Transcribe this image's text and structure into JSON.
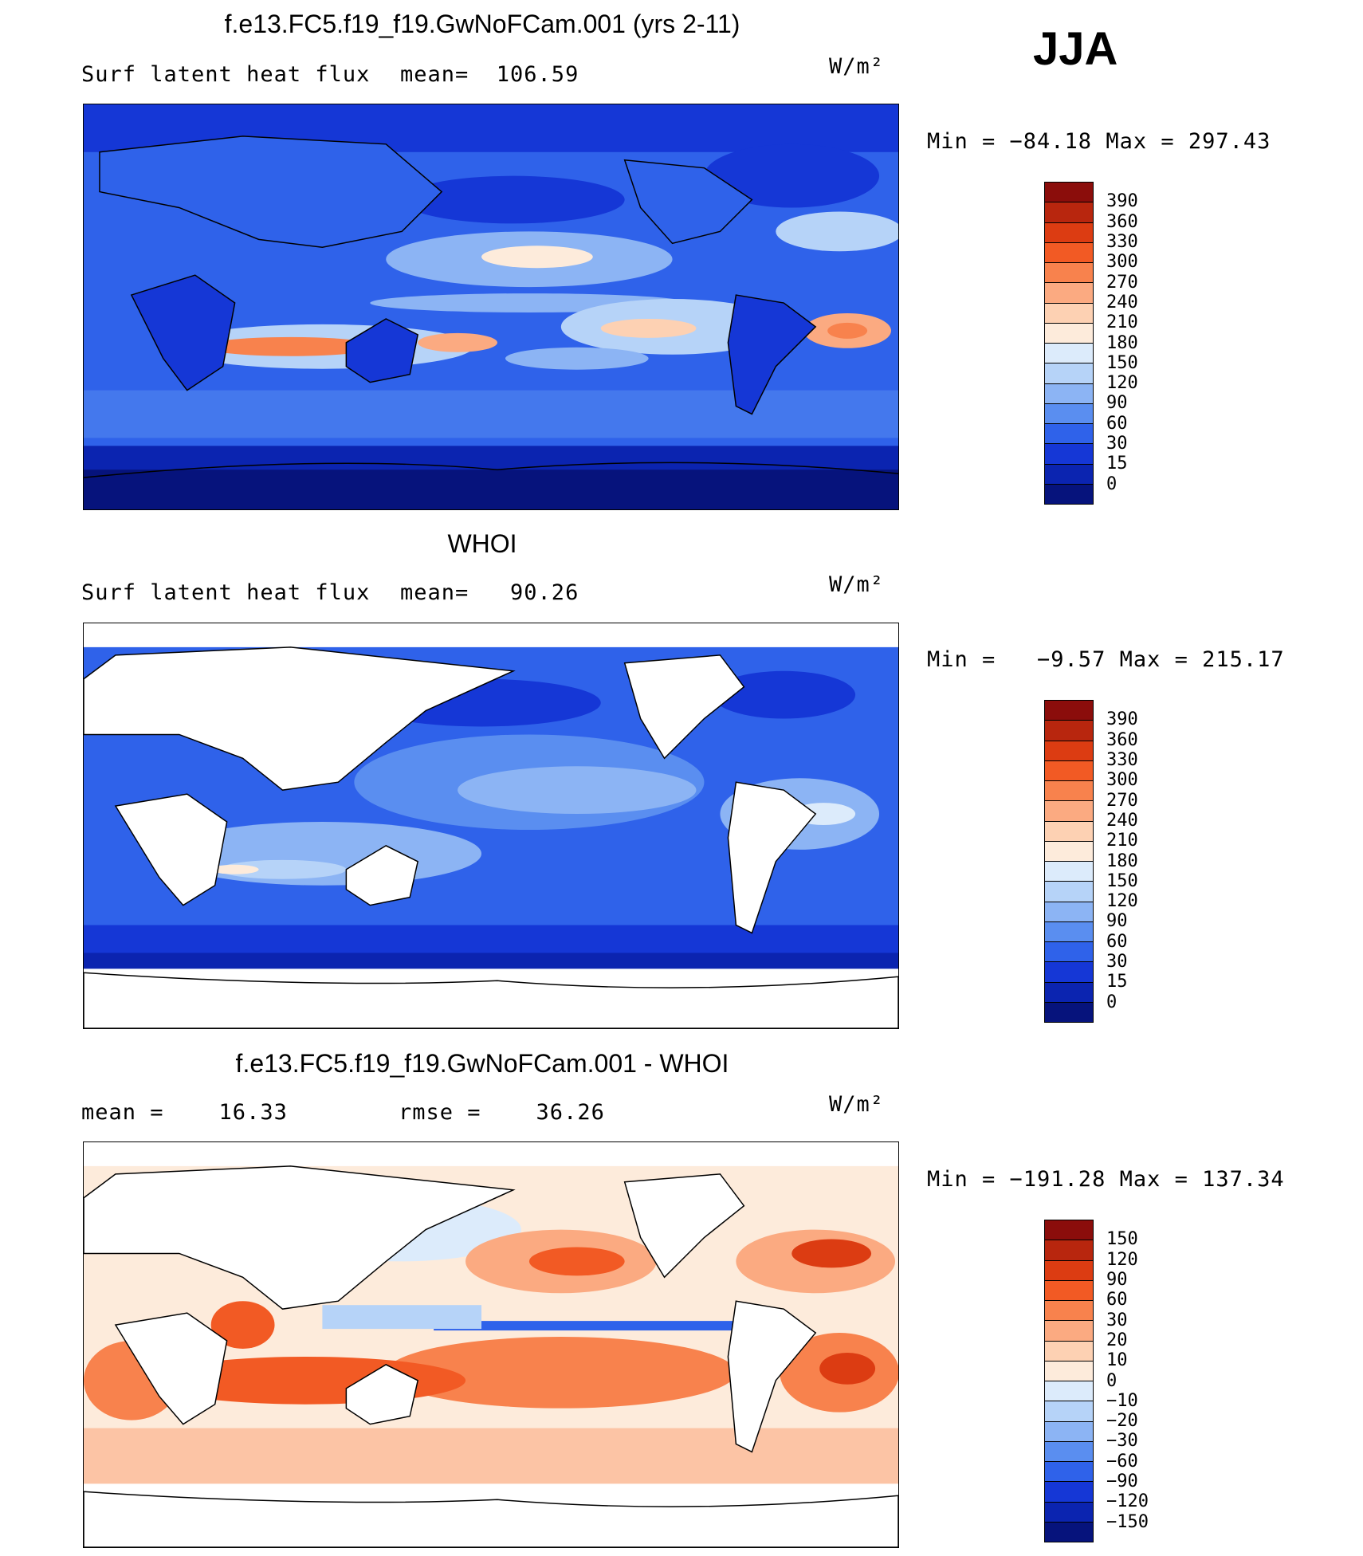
{
  "season": "JJA",
  "units": "W/m²",
  "panels": [
    {
      "title": "f.e13.FC5.f19_f19.GwNoFCam.001 (yrs 2-11)",
      "left_label": "Surf latent heat flux",
      "mid_label": "mean=  106.59",
      "minmax": "Min = −84.18 Max = 297.43",
      "colorbar": {
        "labels": [
          "390",
          "360",
          "330",
          "300",
          "270",
          "240",
          "210",
          "180",
          "150",
          "120",
          "90",
          "60",
          "30",
          "15",
          "0"
        ],
        "colors": [
          "#8b0d0b",
          "#b8260e",
          "#dc3c12",
          "#f25a24",
          "#f8824d",
          "#fbaa81",
          "#fdd1b3",
          "#fdebdb",
          "#dcebfb",
          "#b6d3f8",
          "#8cb4f4",
          "#5a8ef0",
          "#2f62ea",
          "#1537d6",
          "#0b24b0",
          "#06137c"
        ]
      }
    },
    {
      "title": "WHOI",
      "left_label": "Surf latent heat flux",
      "mid_label": "mean=   90.26",
      "minmax": "Min =   −9.57 Max = 215.17",
      "colorbar": {
        "labels": [
          "390",
          "360",
          "330",
          "300",
          "270",
          "240",
          "210",
          "180",
          "150",
          "120",
          "90",
          "60",
          "30",
          "15",
          "0"
        ],
        "colors": [
          "#8b0d0b",
          "#b8260e",
          "#dc3c12",
          "#f25a24",
          "#f8824d",
          "#fbaa81",
          "#fdd1b3",
          "#fdebdb",
          "#dcebfb",
          "#b6d3f8",
          "#8cb4f4",
          "#5a8ef0",
          "#2f62ea",
          "#1537d6",
          "#0b24b0",
          "#06137c"
        ]
      }
    },
    {
      "title": "f.e13.FC5.f19_f19.GwNoFCam.001 - WHOI",
      "left_label": "mean =    16.33",
      "mid_label": "rmse =    36.26",
      "minmax": "Min = −191.28 Max = 137.34",
      "colorbar": {
        "labels": [
          "150",
          "120",
          "90",
          "60",
          "30",
          "20",
          "10",
          "0",
          "−10",
          "−20",
          "−30",
          "−60",
          "−90",
          "−120",
          "−150"
        ],
        "colors": [
          "#8b0d0b",
          "#b8260e",
          "#dc3c12",
          "#f25a24",
          "#f8824d",
          "#fbaa81",
          "#fdd1b3",
          "#fdebdb",
          "#dcebfb",
          "#b6d3f8",
          "#8cb4f4",
          "#5a8ef0",
          "#2f62ea",
          "#1537d6",
          "#0b24b0",
          "#06137c"
        ]
      }
    }
  ]
}
